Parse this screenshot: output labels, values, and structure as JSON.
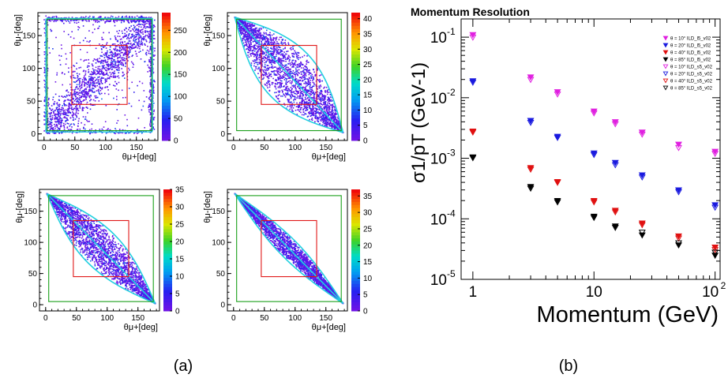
{
  "captions": {
    "left": "(a)",
    "right": "(b)"
  },
  "chart_data": [
    {
      "type": "heatmap",
      "panel": "a-top-left",
      "xlabel": "θμ+[deg]",
      "ylabel": "θμ-[deg]",
      "xlim": [
        -10,
        185
      ],
      "ylim": [
        -10,
        185
      ],
      "xticks": [
        0,
        50,
        100,
        150
      ],
      "yticks": [
        0,
        50,
        100,
        150
      ],
      "colorbar": {
        "min": 0,
        "max": 290,
        "ticks": [
          0,
          50,
          100,
          150,
          200,
          250
        ]
      },
      "pattern": "diagonal-band",
      "outer_box": [
        5,
        175,
        5,
        175
      ],
      "inner_box": [
        45,
        135,
        45,
        135
      ]
    },
    {
      "type": "heatmap",
      "panel": "a-top-right",
      "xlabel": "θμ+[deg]",
      "ylabel": "θμ-[deg]",
      "xlim": [
        -10,
        185
      ],
      "ylim": [
        -10,
        185
      ],
      "xticks": [
        0,
        50,
        100,
        150
      ],
      "yticks": [
        0,
        50,
        100,
        150
      ],
      "colorbar": {
        "min": 0,
        "max": 42,
        "ticks": [
          0,
          5,
          10,
          15,
          20,
          25,
          30,
          35,
          40
        ]
      },
      "pattern": "anti-diagonal-wide",
      "outer_box": [
        5,
        175,
        5,
        175
      ],
      "inner_box": [
        45,
        135,
        45,
        135
      ]
    },
    {
      "type": "heatmap",
      "panel": "a-bottom-left",
      "xlabel": "θμ+[deg]",
      "ylabel": "θμ-[deg]",
      "xlim": [
        -10,
        185
      ],
      "ylim": [
        -10,
        185
      ],
      "xticks": [
        0,
        50,
        100,
        150
      ],
      "yticks": [
        0,
        50,
        100,
        150
      ],
      "colorbar": {
        "min": 0,
        "max": 35,
        "ticks": [
          0,
          5,
          10,
          15,
          20,
          25,
          30,
          35
        ]
      },
      "pattern": "anti-diagonal-medium",
      "outer_box": [
        5,
        175,
        5,
        175
      ],
      "inner_box": [
        45,
        135,
        45,
        135
      ]
    },
    {
      "type": "heatmap",
      "panel": "a-bottom-right",
      "xlabel": "θμ+[deg]",
      "ylabel": "θμ-[deg]",
      "xlim": [
        -10,
        185
      ],
      "ylim": [
        -10,
        185
      ],
      "xticks": [
        0,
        50,
        100,
        150
      ],
      "yticks": [
        0,
        50,
        100,
        150
      ],
      "colorbar": {
        "min": 0,
        "max": 37,
        "ticks": [
          0,
          5,
          10,
          15,
          20,
          25,
          30,
          35
        ]
      },
      "pattern": "anti-diagonal-narrow",
      "outer_box": [
        5,
        175,
        5,
        175
      ],
      "inner_box": [
        45,
        135,
        45,
        135
      ]
    },
    {
      "type": "scatter",
      "panel": "b",
      "title": "Momentum Resolution",
      "xlabel": "Momentum (GeV)",
      "ylabel": "σ1/pT (GeV-1)",
      "xscale": "log",
      "yscale": "log",
      "xlim": [
        0.8,
        110
      ],
      "ylim": [
        1e-05,
        0.2
      ],
      "xtick_labels": [
        {
          "value": 1,
          "label": "1"
        },
        {
          "value": 10,
          "label": "10"
        },
        {
          "value": 100,
          "label": "10",
          "sup": "2"
        }
      ],
      "ytick_labels": [
        {
          "value": 0.1,
          "label": "10",
          "sup": "-1"
        },
        {
          "value": 0.01,
          "label": "10",
          "sup": "-2"
        },
        {
          "value": 0.001,
          "label": "10",
          "sup": "-3"
        },
        {
          "value": 0.0001,
          "label": "10",
          "sup": "-4"
        },
        {
          "value": 1e-05,
          "label": "10",
          "sup": "-5"
        }
      ],
      "legend_position": "top-right",
      "x": [
        1,
        3,
        5,
        10,
        15,
        25,
        50,
        100
      ],
      "series": [
        {
          "name": "θ = 10° ILD_l5_v02",
          "color": "#e020e0",
          "filled": true,
          "values": [
            0.11,
            0.022,
            0.0125,
            0.006,
            0.004,
            0.0027,
            0.0017,
            0.0013
          ]
        },
        {
          "name": "θ = 20° ILD_l5_v02",
          "color": "#1a1adf",
          "filled": true,
          "values": [
            0.019,
            0.0042,
            0.0023,
            0.00122,
            0.00085,
            0.00053,
            0.0003,
            0.00017
          ]
        },
        {
          "name": "θ = 40° ILD_l5_v02",
          "color": "#e01010",
          "filled": true,
          "values": [
            0.0028,
            0.0007,
            0.00041,
            0.0002,
            0.000138,
            8.5e-05,
            5.2e-05,
            3.4e-05
          ]
        },
        {
          "name": "θ = 85° ILD_l5_v02",
          "color": "#000000",
          "filled": true,
          "values": [
            0.00105,
            0.00034,
            0.0002,
            0.00011,
            7.6e-05,
            5.4e-05,
            3.7e-05,
            2.5e-05
          ]
        },
        {
          "name": "θ = 10° ILD_s5_v02",
          "color": "#e020e0",
          "filled": false,
          "values": [
            0.1,
            0.02,
            0.0115,
            0.0056,
            0.0037,
            0.0025,
            0.0015,
            0.0012
          ]
        },
        {
          "name": "θ = 20° ILD_s5_v02",
          "color": "#1a1adf",
          "filled": false,
          "values": [
            0.018,
            0.0039,
            0.0022,
            0.00115,
            0.00078,
            0.00049,
            0.00028,
            0.000155
          ]
        },
        {
          "name": "θ = 40° ILD_s5_v02",
          "color": "#e01010",
          "filled": false,
          "values": [
            0.0027,
            0.00066,
            0.0004,
            0.00019,
            0.00013,
            8e-05,
            4.8e-05,
            3.1e-05
          ]
        },
        {
          "name": "θ = 85° ILD_s5_v02",
          "color": "#000000",
          "filled": false,
          "values": [
            0.00102,
            0.00032,
            0.00019,
            0.000105,
            7.2e-05,
            6e-05,
            4e-05,
            2.8e-05
          ]
        }
      ]
    }
  ]
}
